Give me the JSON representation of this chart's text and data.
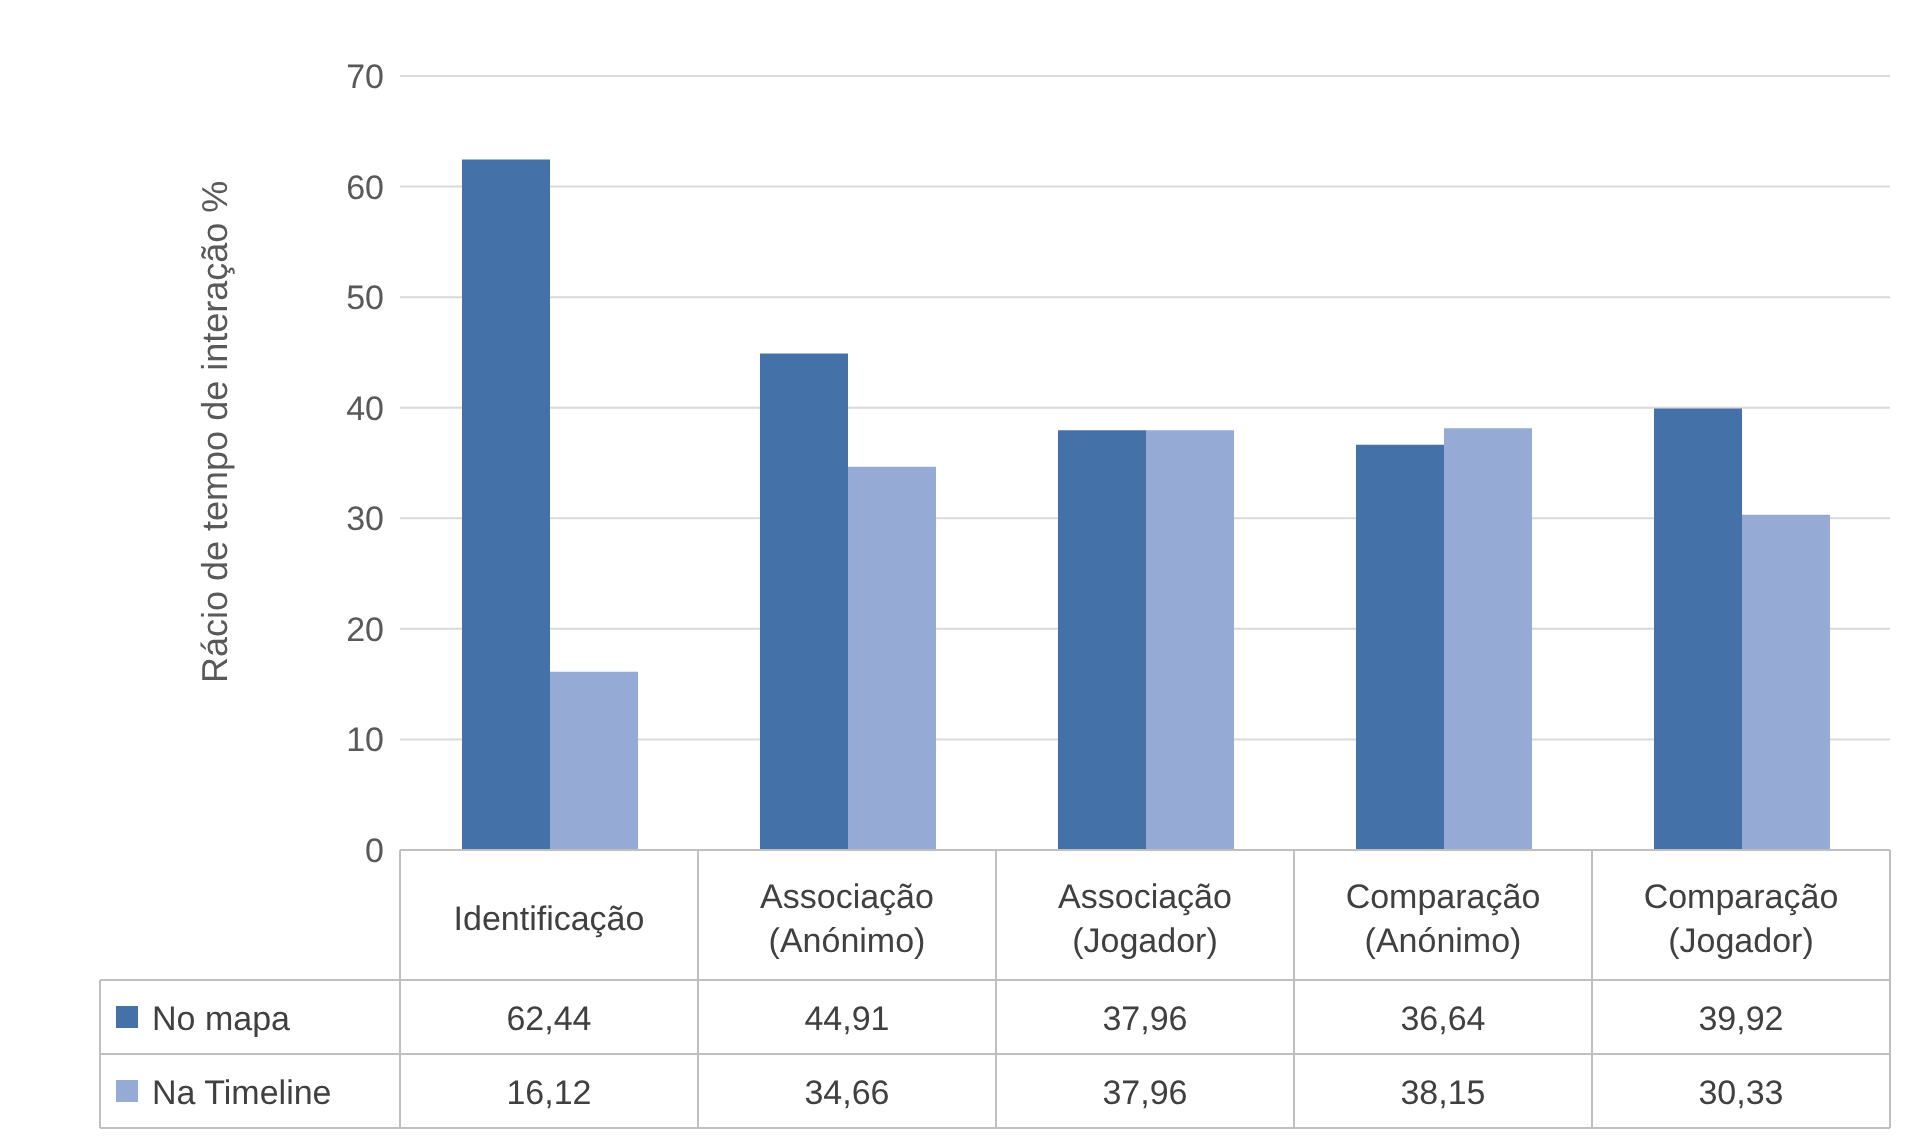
{
  "chart_data": {
    "type": "bar",
    "ylabel": "Rácio de tempo de interação %",
    "categories": [
      "Identificação",
      "Associação (Anónimo)",
      "Associação (Jogador)",
      "Comparação (Anónimo)",
      "Comparação (Jogador)"
    ],
    "series": [
      {
        "name": "No mapa",
        "color": "#4472a8",
        "values": [
          62.44,
          44.91,
          37.96,
          36.64,
          39.92
        ],
        "value_labels": [
          "62,44",
          "44,91",
          "37,96",
          "36,64",
          "39,92"
        ]
      },
      {
        "name": "Na Timeline",
        "color": "#95aad4",
        "values": [
          16.12,
          34.66,
          37.96,
          38.15,
          30.33
        ],
        "value_labels": [
          "16,12",
          "34,66",
          "37,96",
          "38,15",
          "30,33"
        ]
      }
    ],
    "ylim": [
      0,
      70
    ],
    "yticks": [
      0,
      10,
      20,
      30,
      40,
      50,
      60,
      70
    ],
    "grid": "y",
    "legend": "bottom"
  }
}
